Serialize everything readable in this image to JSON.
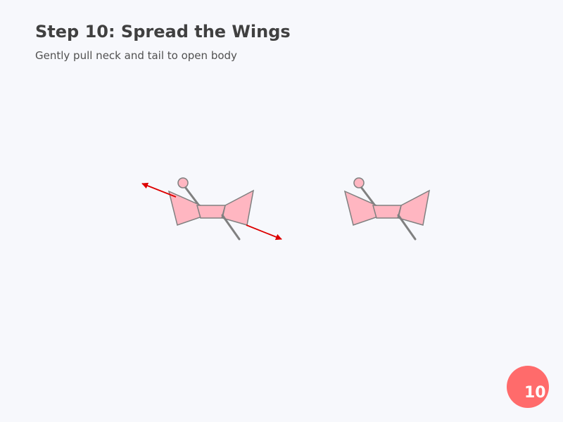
{
  "step": {
    "title": "Step 10: Spread the Wings",
    "instruction": "Gently pull neck and tail to open body",
    "number": "10"
  },
  "colors": {
    "background": "#f7f8fc",
    "paper": "#ffb6c1",
    "outline": "#808080",
    "arrow": "#dd0000",
    "badge": "#ff6b6b",
    "text": "#404040"
  },
  "figures": [
    {
      "id": "before",
      "arrows": [
        "pull-neck",
        "pull-tail"
      ]
    },
    {
      "id": "after",
      "arrows": []
    }
  ]
}
